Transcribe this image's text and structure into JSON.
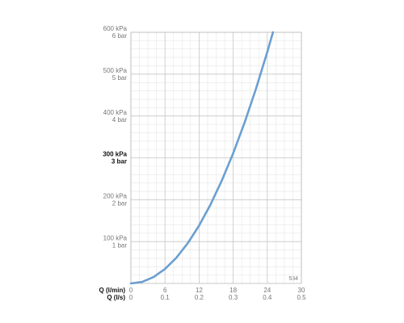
{
  "chart_data": {
    "type": "line",
    "xlabel": "Q (l/min)",
    "x2label": "Q (l/s)",
    "annotation": "534",
    "x": [
      0,
      2,
      4,
      6,
      8,
      10,
      12,
      14,
      16,
      18,
      20,
      22,
      24,
      25
    ],
    "series": [
      {
        "color": "#6b9fd0",
        "values": [
          0,
          3.8,
          15.4,
          34.6,
          61.4,
          96,
          138.2,
          188.2,
          245.8,
          311,
          384,
          464.6,
          553,
          600
        ]
      }
    ],
    "xlim": [
      0,
      30
    ],
    "xticks": [
      0,
      6,
      12,
      18,
      24,
      30
    ],
    "x2lim": [
      0,
      0.5
    ],
    "x2ticks": [
      0,
      0.1,
      0.2,
      0.3,
      0.4,
      0.5
    ],
    "ylim": [
      0,
      600
    ],
    "yticks": [
      {
        "value": 100,
        "label": "100 kPa"
      },
      {
        "value": 200,
        "label": "200 kPa"
      },
      {
        "value": 300,
        "label": "300 kPa"
      },
      {
        "value": 400,
        "label": "400 kPa"
      },
      {
        "value": 500,
        "label": "500 kPa"
      },
      {
        "value": 600,
        "label": "600 kPa"
      }
    ],
    "y2lim": [
      0,
      6
    ],
    "y2ticks": [
      {
        "value": 1,
        "label": "1 bar"
      },
      {
        "value": 2,
        "label": "2 bar"
      },
      {
        "value": 3,
        "label": "3 bar"
      },
      {
        "value": 4,
        "label": "4 bar"
      },
      {
        "value": 5,
        "label": "5 bar"
      },
      {
        "value": 6,
        "label": "6 bar"
      }
    ],
    "bold_ytick": 300,
    "grid": true
  }
}
